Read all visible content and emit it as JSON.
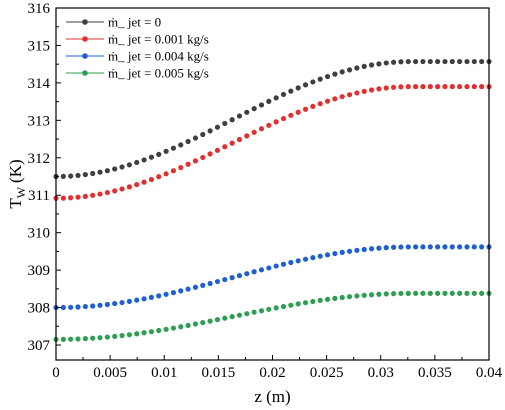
{
  "chart_data": {
    "type": "scatter",
    "xlabel": "z (m)",
    "ylabel": "T",
    "ylabel_sub": "W",
    "ylabel_unit": "(K)",
    "xlim": [
      0,
      0.04
    ],
    "ylim": [
      306.6,
      316
    ],
    "x_ticks": [
      0,
      0.005,
      0.01,
      0.015,
      0.02,
      0.025,
      0.03,
      0.035,
      0.04
    ],
    "x_tick_labels": [
      "0",
      "0.005",
      "0.01",
      "0.015",
      "0.02",
      "0.025",
      "0.03",
      "0.035",
      "0.04"
    ],
    "y_ticks": [
      307,
      308,
      309,
      310,
      311,
      312,
      313,
      314,
      315,
      316
    ],
    "y_tick_labels": [
      "307",
      "308",
      "309",
      "310",
      "311",
      "312",
      "313",
      "314",
      "315",
      "316"
    ],
    "grid": false,
    "legend_position": "top-left",
    "points_per_series": 60,
    "series": [
      {
        "name": "ṁ_ jet = 0",
        "color": "#3f3f3f",
        "y_start": 311.5,
        "y_end": 314.57
      },
      {
        "name": "ṁ_ jet = 0.001 kg/s",
        "color": "#e03030",
        "y_start": 310.92,
        "y_end": 313.9
      },
      {
        "name": "ṁ_ jet = 0.004 kg/s",
        "color": "#1f5fd0",
        "y_start": 308.0,
        "y_end": 309.62
      },
      {
        "name": "ṁ_ jet = 0.005 kg/s",
        "color": "#2e9e55",
        "y_start": 307.15,
        "y_end": 308.38
      }
    ]
  }
}
